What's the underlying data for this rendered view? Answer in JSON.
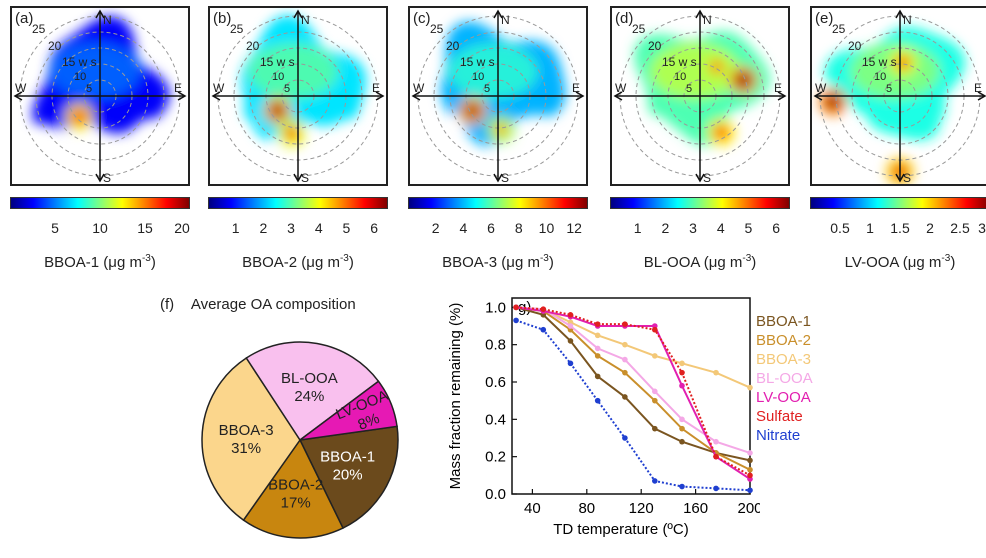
{
  "polar_panels": [
    {
      "id": "a",
      "label": "(a)",
      "var": "BBOA-1",
      "unit": "(μg m",
      "unit_exp": "-3",
      "unit_end": ")",
      "ticks": [
        "5",
        "10",
        "15",
        "20"
      ],
      "tick_values": [
        5,
        10,
        15,
        20
      ],
      "range": [
        0,
        20
      ],
      "colormap": "jet",
      "hotspots": [
        {
          "angle": 225,
          "ws": 7,
          "level": 0.85
        }
      ]
    },
    {
      "id": "b",
      "label": "(b)",
      "var": "BBOA-2",
      "unit": "(μg m",
      "unit_exp": "-3",
      "unit_end": ")",
      "ticks": [
        "1",
        "2",
        "3",
        "4",
        "5",
        "6"
      ],
      "tick_values": [
        1,
        2,
        3,
        4,
        5,
        6
      ],
      "range": [
        0,
        6.5
      ],
      "colormap": "jet",
      "hotspots": [
        {
          "angle": 215,
          "ws": 6,
          "level": 0.95
        },
        {
          "angle": 260,
          "ws": 9,
          "level": 0.8
        }
      ]
    },
    {
      "id": "c",
      "label": "(c)",
      "var": "BBOA-3",
      "unit": "(μg m",
      "unit_exp": "-3",
      "unit_end": ")",
      "ticks": [
        "2",
        "4",
        "6",
        "8",
        "10",
        "12"
      ],
      "tick_values": [
        2,
        4,
        6,
        8,
        10,
        12
      ],
      "range": [
        0,
        13
      ],
      "colormap": "jet",
      "hotspots": [
        {
          "angle": 210,
          "ws": 7,
          "level": 0.95
        },
        {
          "angle": 275,
          "ws": 8,
          "level": 0.7
        }
      ]
    },
    {
      "id": "d",
      "label": "(d)",
      "var": "BL-OOA",
      "unit": "(μg m",
      "unit_exp": "-3",
      "unit_end": ")",
      "ticks": [
        "1",
        "2",
        "3",
        "4",
        "5",
        "6"
      ],
      "tick_values": [
        1,
        2,
        3,
        4,
        5,
        6
      ],
      "range": [
        0,
        6.5
      ],
      "colormap": "jet",
      "hotspots": [
        {
          "angle": 20,
          "ws": 11,
          "level": 1.0
        },
        {
          "angle": 300,
          "ws": 10,
          "level": 0.85
        },
        {
          "angle": 60,
          "ws": 8,
          "level": 0.75
        }
      ]
    },
    {
      "id": "e",
      "label": "(e)",
      "var": "LV-OOA",
      "unit": "(μg m",
      "unit_exp": "-3",
      "unit_end": ")",
      "ticks": [
        "0.5",
        "1",
        "1.5",
        "2",
        "2.5",
        "3"
      ],
      "tick_values": [
        0.5,
        1,
        1.5,
        2,
        2.5,
        3
      ],
      "range": [
        0,
        3
      ],
      "colormap": "jet",
      "hotspots": [
        {
          "angle": 185,
          "ws": 16,
          "level": 1.0
        },
        {
          "angle": 85,
          "ws": 8,
          "level": 0.8
        },
        {
          "angle": 270,
          "ws": 18,
          "level": 0.9
        }
      ]
    }
  ],
  "polar_axis": {
    "north": "N",
    "south": "S",
    "east": "E",
    "west": "W",
    "ring_labels": [
      "25",
      "20",
      "15",
      "10",
      "5"
    ],
    "ws_label": "w s"
  },
  "pie": {
    "panel_label": "(f)",
    "title": "Average OA composition",
    "slices": [
      {
        "name": "BBOA-1",
        "percent": 20,
        "label": "20%",
        "color": "#6b4a1c",
        "text_color": "#ffffff"
      },
      {
        "name": "BBOA-2",
        "percent": 17,
        "label": "17%",
        "color": "#c8860f",
        "text_color": "#222222"
      },
      {
        "name": "BBOA-3",
        "percent": 31,
        "label": "31%",
        "color": "#fbd68c",
        "text_color": "#222222"
      },
      {
        "name": "BL-OOA",
        "percent": 24,
        "label": "24%",
        "color": "#f9c0ee",
        "text_color": "#222222"
      },
      {
        "name": "LV-OOA",
        "percent": 8,
        "label": "8%",
        "color": "#e619b4",
        "text_color": "#222222"
      }
    ]
  },
  "chart_data": {
    "type": "line",
    "panel_label": "g)",
    "xlabel": "TD  temperature (ºC)",
    "ylabel": "Mass fraction remaining (%)",
    "xlim": [
      25,
      200
    ],
    "ylim": [
      0,
      1.05
    ],
    "xticks": [
      40,
      80,
      120,
      160,
      200
    ],
    "yticks": [
      0.0,
      0.2,
      0.4,
      0.6,
      0.8,
      1.0
    ],
    "ytick_labels": [
      "0.0",
      "0.2",
      "0.4",
      "0.6",
      "0.8",
      "1.0"
    ],
    "legend": "right",
    "series": [
      {
        "name": "BBOA-1",
        "color": "#7a5520",
        "dash": false,
        "x": [
          28,
          48,
          68,
          88,
          108,
          130,
          150,
          175,
          200
        ],
        "y": [
          1.0,
          0.96,
          0.82,
          0.63,
          0.52,
          0.35,
          0.28,
          0.22,
          0.18
        ]
      },
      {
        "name": "BBOA-2",
        "color": "#c98f2b",
        "dash": false,
        "x": [
          28,
          48,
          68,
          88,
          108,
          130,
          150,
          175,
          200
        ],
        "y": [
          1.0,
          0.98,
          0.88,
          0.74,
          0.65,
          0.5,
          0.35,
          0.22,
          0.13
        ]
      },
      {
        "name": "BBOA-3",
        "color": "#f3c878",
        "dash": false,
        "x": [
          28,
          48,
          68,
          88,
          108,
          130,
          150,
          175,
          200
        ],
        "y": [
          1.0,
          0.99,
          0.92,
          0.85,
          0.8,
          0.74,
          0.7,
          0.65,
          0.57
        ]
      },
      {
        "name": "BL-OOA",
        "color": "#f4a8e6",
        "dash": false,
        "x": [
          28,
          48,
          68,
          88,
          108,
          130,
          150,
          175,
          200
        ],
        "y": [
          1.0,
          0.99,
          0.9,
          0.78,
          0.72,
          0.55,
          0.4,
          0.28,
          0.22
        ]
      },
      {
        "name": "LV-OOA",
        "color": "#e21fb0",
        "dash": false,
        "x": [
          28,
          48,
          68,
          88,
          108,
          130,
          150,
          175,
          200
        ],
        "y": [
          1.0,
          0.98,
          0.95,
          0.9,
          0.9,
          0.9,
          0.58,
          0.2,
          0.08
        ]
      },
      {
        "name": "Sulfate",
        "color": "#e02020",
        "dash": true,
        "x": [
          28,
          48,
          68,
          88,
          108,
          130,
          150,
          175,
          200
        ],
        "y": [
          1.0,
          0.99,
          0.96,
          0.91,
          0.91,
          0.88,
          0.65,
          0.2,
          0.1
        ]
      },
      {
        "name": "Nitrate",
        "color": "#1f3fd0",
        "dash": true,
        "x": [
          28,
          48,
          68,
          88,
          108,
          130,
          150,
          175,
          200
        ],
        "y": [
          0.93,
          0.88,
          0.7,
          0.5,
          0.3,
          0.07,
          0.04,
          0.03,
          0.02
        ]
      }
    ]
  }
}
